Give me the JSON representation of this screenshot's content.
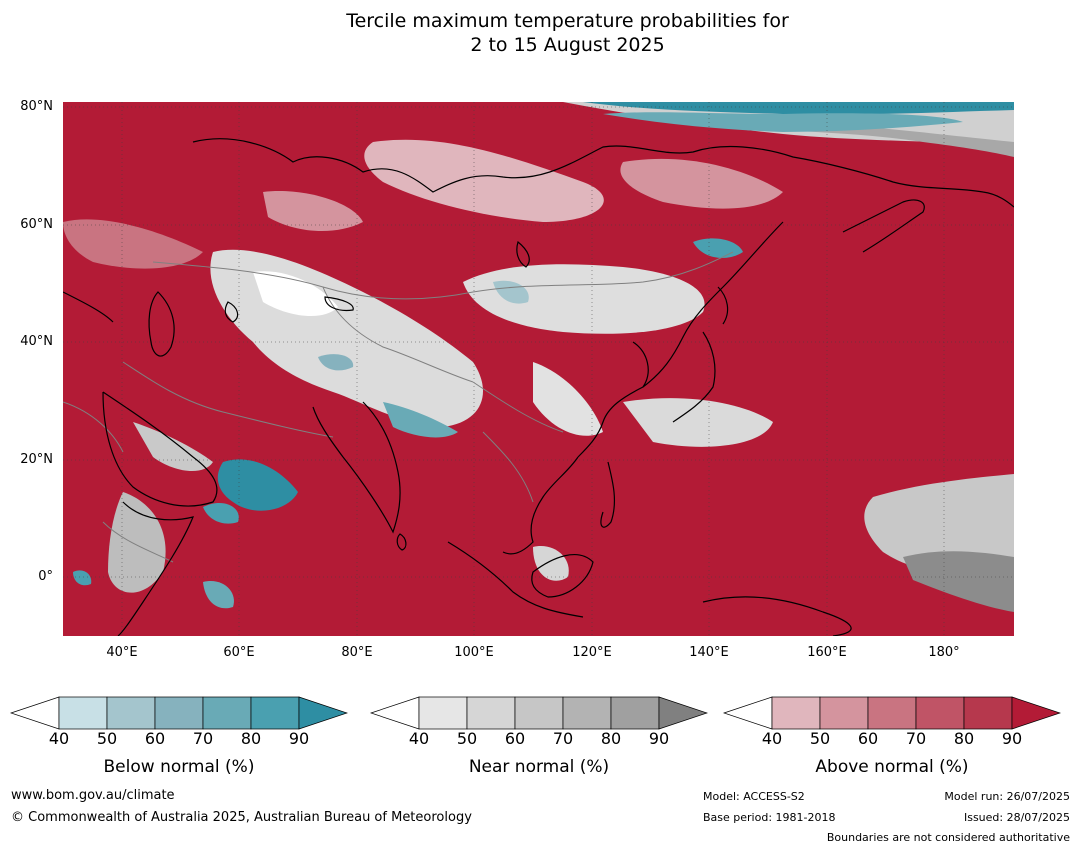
{
  "title": {
    "line1": "Tercile maximum temperature probabilities for",
    "line2": "2 to 15 August 2025"
  },
  "map": {
    "lat_ticks": [
      "80°N",
      "60°N",
      "40°N",
      "20°N",
      "0°"
    ],
    "lon_ticks": [
      "40°E",
      "60°E",
      "80°E",
      "100°E",
      "120°E",
      "140°E",
      "160°E",
      "180°"
    ],
    "colors": {
      "above_dominant": "#b31b36",
      "coastline": "#000000",
      "boundaries": "#808080",
      "gridlines": "#404040"
    }
  },
  "legend": {
    "tick_values": [
      "40",
      "50",
      "60",
      "70",
      "80",
      "90"
    ],
    "below": {
      "label": "Below normal (%)",
      "colors": [
        "#c8e0e6",
        "#a4c5cd",
        "#86b2be",
        "#69aab6",
        "#4aa0b0",
        "#2e8ea3"
      ]
    },
    "near": {
      "label": "Near normal (%)",
      "colors": [
        "#e6e6e6",
        "#d6d6d6",
        "#c6c6c6",
        "#b3b3b3",
        "#a0a0a0",
        "#808080"
      ]
    },
    "above": {
      "label": "Above normal (%)",
      "colors": [
        "#e0b6bd",
        "#d4949e",
        "#c97481",
        "#c05466",
        "#b6384d",
        "#b31b36"
      ]
    }
  },
  "footer": {
    "website": "www.bom.gov.au/climate",
    "copyright": "© Commonwealth of Australia 2025, Australian Bureau of Meteorology",
    "model": "Model: ACCESS-S2",
    "base_period": "Base period: 1981-2018",
    "model_run": "Model run: 26/07/2025",
    "issued": "Issued: 28/07/2025",
    "disclaimer": "Boundaries are not considered authoritative"
  }
}
